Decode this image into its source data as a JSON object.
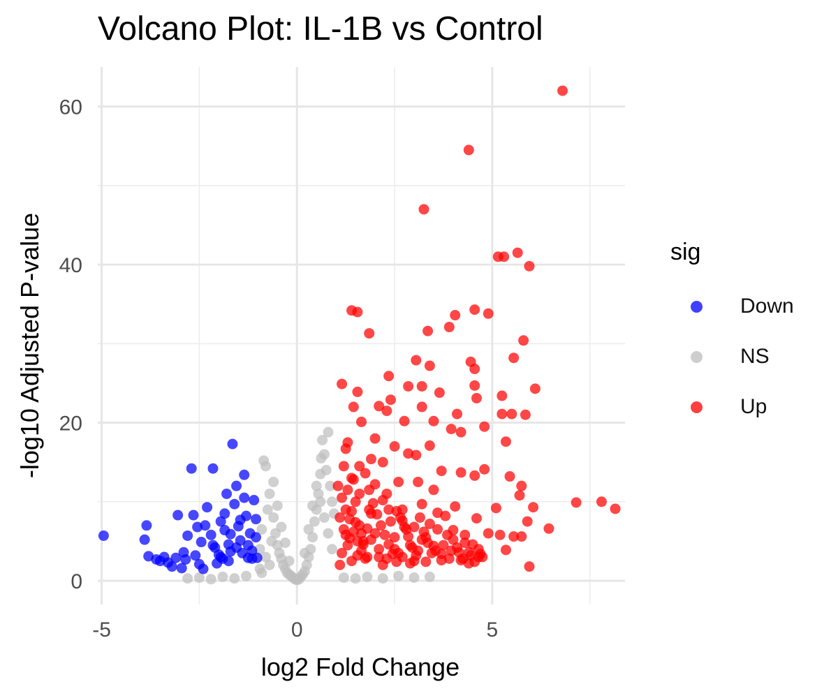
{
  "chart_data": {
    "type": "scatter",
    "title": "Volcano Plot: IL-1B vs Control",
    "xlabel": "log2 Fold Change",
    "ylabel": "-log10 Adjusted P-value",
    "xlim": [
      -5.1,
      8.4
    ],
    "ylim": [
      -3,
      65
    ],
    "x_ticks": [
      -5,
      0,
      5
    ],
    "y_ticks": [
      0,
      20,
      40,
      60
    ],
    "grid": true,
    "legend": {
      "title": "sig",
      "position": "right"
    },
    "series": [
      {
        "name": "Down",
        "color": "#0000FF",
        "points": [
          [
            -4.95,
            5.7
          ],
          [
            -3.85,
            7.0
          ],
          [
            -3.9,
            5.2
          ],
          [
            -3.8,
            3.1
          ],
          [
            -3.6,
            2.7
          ],
          [
            -3.5,
            2.5
          ],
          [
            -3.3,
            2.3
          ],
          [
            -3.2,
            1.8
          ],
          [
            -3.1,
            2.9
          ],
          [
            -2.95,
            1.6
          ],
          [
            -2.9,
            3.6
          ],
          [
            -2.8,
            5.7
          ],
          [
            -2.7,
            14.2
          ],
          [
            -2.65,
            8.3
          ],
          [
            -2.6,
            3.2
          ],
          [
            -2.5,
            2.1
          ],
          [
            -2.4,
            1.5
          ],
          [
            -2.3,
            9.3
          ],
          [
            -2.2,
            5.8
          ],
          [
            -2.15,
            14.2
          ],
          [
            -2.1,
            4.2
          ],
          [
            -2.0,
            3.3
          ],
          [
            -1.95,
            7.5
          ],
          [
            -1.9,
            2.8
          ],
          [
            -1.85,
            6.4
          ],
          [
            -1.8,
            11.0
          ],
          [
            -1.75,
            4.6
          ],
          [
            -1.7,
            3.7
          ],
          [
            -1.65,
            17.3
          ],
          [
            -1.6,
            9.7
          ],
          [
            -1.55,
            12.0
          ],
          [
            -1.5,
            6.9
          ],
          [
            -1.45,
            5.1
          ],
          [
            -1.4,
            3.5
          ],
          [
            -1.35,
            13.4
          ],
          [
            -1.3,
            8.2
          ],
          [
            -1.25,
            4.5
          ],
          [
            -1.2,
            6.0
          ],
          [
            -1.15,
            2.8
          ],
          [
            -1.1,
            10.2
          ],
          [
            -1.05,
            5.5
          ],
          [
            -1.02,
            2.9
          ],
          [
            -2.55,
            6.8
          ],
          [
            -2.45,
            4.9
          ],
          [
            -1.95,
            3.0
          ],
          [
            -1.7,
            5.9
          ],
          [
            -1.45,
            7.7
          ],
          [
            -1.25,
            2.9
          ],
          [
            -3.05,
            8.3
          ],
          [
            -2.85,
            2.7
          ],
          [
            -2.05,
            2.2
          ],
          [
            -1.55,
            4.2
          ],
          [
            -1.15,
            3.8
          ],
          [
            -3.4,
            3.0
          ],
          [
            -2.35,
            7.0
          ],
          [
            -1.85,
            8.5
          ],
          [
            -1.35,
            10.5
          ],
          [
            -1.05,
            7.8
          ],
          [
            -2.15,
            4.5
          ],
          [
            -1.75,
            2.5
          ]
        ]
      },
      {
        "name": "NS",
        "color": "#BEBEBE",
        "points": [
          [
            -0.85,
            15.2
          ],
          [
            -0.8,
            14.5
          ],
          [
            -0.7,
            11.0
          ],
          [
            -0.6,
            8.0
          ],
          [
            -0.55,
            6.0
          ],
          [
            -0.5,
            4.5
          ],
          [
            -0.45,
            3.5
          ],
          [
            -0.4,
            2.8
          ],
          [
            -0.35,
            2.0
          ],
          [
            -0.3,
            1.5
          ],
          [
            -0.25,
            1.0
          ],
          [
            -0.2,
            0.8
          ],
          [
            -0.15,
            0.6
          ],
          [
            -0.1,
            0.4
          ],
          [
            -0.05,
            0.2
          ],
          [
            0.0,
            0.1
          ],
          [
            0.05,
            0.2
          ],
          [
            0.1,
            0.5
          ],
          [
            0.15,
            0.8
          ],
          [
            0.2,
            1.2
          ],
          [
            0.25,
            2.0
          ],
          [
            0.3,
            3.0
          ],
          [
            0.35,
            4.0
          ],
          [
            0.4,
            5.5
          ],
          [
            0.45,
            7.5
          ],
          [
            0.5,
            9.0
          ],
          [
            0.55,
            11.0
          ],
          [
            0.6,
            13.5
          ],
          [
            0.62,
            15.5
          ],
          [
            0.65,
            17.8
          ],
          [
            0.7,
            16.0
          ],
          [
            0.75,
            14.0
          ],
          [
            0.8,
            18.8
          ],
          [
            0.85,
            12.0
          ],
          [
            0.9,
            10.0
          ],
          [
            0.95,
            8.5
          ],
          [
            -0.95,
            4.0
          ],
          [
            -0.9,
            6.5
          ],
          [
            -0.75,
            9.0
          ],
          [
            -0.65,
            5.0
          ],
          [
            -0.95,
            1.5
          ],
          [
            -0.9,
            1.0
          ],
          [
            -2.8,
            0.3
          ],
          [
            -2.5,
            0.4
          ],
          [
            -2.2,
            0.2
          ],
          [
            -1.9,
            0.5
          ],
          [
            -1.6,
            0.3
          ],
          [
            -1.3,
            0.6
          ],
          [
            1.2,
            0.4
          ],
          [
            1.5,
            0.3
          ],
          [
            1.8,
            0.5
          ],
          [
            2.2,
            0.3
          ],
          [
            2.6,
            0.6
          ],
          [
            3.0,
            0.4
          ],
          [
            3.4,
            0.5
          ],
          [
            0.5,
            12.0
          ],
          [
            0.6,
            10.0
          ],
          [
            0.7,
            8.0
          ],
          [
            0.4,
            9.5
          ],
          [
            0.3,
            6.5
          ],
          [
            -0.3,
            4.8
          ],
          [
            -0.4,
            6.8
          ],
          [
            -0.5,
            9.5
          ],
          [
            -0.6,
            12.5
          ],
          [
            0.2,
            3.5
          ],
          [
            -0.2,
            2.5
          ],
          [
            0.8,
            6.0
          ],
          [
            0.9,
            4.0
          ],
          [
            -0.8,
            3.0
          ],
          [
            -0.7,
            2.0
          ]
        ]
      },
      {
        "name": "Up",
        "color": "#FF0000",
        "points": [
          [
            6.8,
            62.0
          ],
          [
            4.4,
            54.5
          ],
          [
            3.25,
            47.0
          ],
          [
            5.15,
            41.0
          ],
          [
            5.3,
            41.0
          ],
          [
            5.65,
            41.5
          ],
          [
            5.95,
            39.8
          ],
          [
            1.4,
            34.2
          ],
          [
            1.55,
            34.0
          ],
          [
            4.55,
            34.3
          ],
          [
            4.9,
            33.8
          ],
          [
            1.85,
            31.3
          ],
          [
            3.35,
            31.6
          ],
          [
            4.05,
            33.6
          ],
          [
            3.9,
            32.1
          ],
          [
            5.8,
            30.4
          ],
          [
            3.05,
            27.9
          ],
          [
            3.4,
            27.2
          ],
          [
            4.45,
            27.7
          ],
          [
            4.55,
            26.8
          ],
          [
            5.55,
            28.2
          ],
          [
            2.35,
            25.9
          ],
          [
            1.15,
            24.9
          ],
          [
            1.55,
            23.9
          ],
          [
            2.85,
            24.6
          ],
          [
            3.2,
            24.6
          ],
          [
            3.65,
            23.8
          ],
          [
            4.55,
            24.7
          ],
          [
            6.1,
            24.3
          ],
          [
            5.25,
            23.4
          ],
          [
            4.6,
            23.1
          ],
          [
            2.4,
            22.9
          ],
          [
            2.1,
            22.1
          ],
          [
            3.2,
            22.0
          ],
          [
            1.45,
            22.0
          ],
          [
            5.25,
            21.1
          ],
          [
            5.5,
            21.1
          ],
          [
            5.85,
            21.0
          ],
          [
            4.1,
            21.1
          ],
          [
            2.3,
            21.5
          ],
          [
            2.75,
            20.2
          ],
          [
            1.65,
            20.1
          ],
          [
            3.5,
            20.2
          ],
          [
            4.8,
            19.5
          ],
          [
            3.95,
            19.2
          ],
          [
            4.2,
            18.8
          ],
          [
            2.0,
            18.0
          ],
          [
            1.3,
            17.5
          ],
          [
            2.5,
            17.0
          ],
          [
            3.4,
            17.1
          ],
          [
            5.35,
            17.6
          ],
          [
            1.25,
            16.7
          ],
          [
            2.85,
            16.1
          ],
          [
            3.05,
            15.9
          ],
          [
            1.9,
            15.4
          ],
          [
            2.2,
            15.0
          ],
          [
            1.6,
            14.5
          ],
          [
            3.7,
            13.9
          ],
          [
            4.2,
            13.7
          ],
          [
            4.8,
            14.1
          ],
          [
            5.45,
            13.2
          ],
          [
            5.75,
            12.0
          ],
          [
            1.4,
            13.0
          ],
          [
            2.6,
            12.5
          ],
          [
            3.1,
            12.5
          ],
          [
            3.5,
            11.5
          ],
          [
            4.55,
            13.3
          ],
          [
            5.7,
            10.8
          ],
          [
            7.15,
            9.9
          ],
          [
            7.8,
            10.0
          ],
          [
            8.15,
            9.1
          ],
          [
            6.05,
            9.3
          ],
          [
            5.1,
            9.2
          ],
          [
            3.2,
            9.7
          ],
          [
            3.6,
            8.6
          ],
          [
            4.05,
            9.4
          ],
          [
            4.6,
            7.9
          ],
          [
            4.9,
            6.0
          ],
          [
            5.2,
            5.8
          ],
          [
            5.55,
            5.6
          ],
          [
            5.75,
            5.6
          ],
          [
            5.9,
            7.5
          ],
          [
            6.45,
            6.6
          ],
          [
            5.35,
            3.9
          ],
          [
            5.95,
            1.8
          ],
          [
            1.1,
            8.0
          ],
          [
            1.2,
            6.5
          ],
          [
            1.3,
            4.5
          ],
          [
            1.4,
            2.5
          ],
          [
            1.5,
            10.0
          ],
          [
            1.6,
            7.0
          ],
          [
            1.7,
            5.0
          ],
          [
            1.8,
            3.0
          ],
          [
            1.9,
            8.5
          ],
          [
            2.0,
            6.0
          ],
          [
            2.1,
            4.0
          ],
          [
            2.2,
            2.0
          ],
          [
            2.3,
            11.0
          ],
          [
            2.4,
            7.5
          ],
          [
            2.5,
            5.5
          ],
          [
            2.6,
            3.5
          ],
          [
            2.7,
            9.0
          ],
          [
            2.8,
            6.5
          ],
          [
            2.9,
            4.5
          ],
          [
            3.0,
            2.5
          ],
          [
            3.15,
            8.0
          ],
          [
            3.3,
            5.5
          ],
          [
            3.45,
            3.5
          ],
          [
            3.6,
            6.5
          ],
          [
            3.75,
            4.5
          ],
          [
            3.9,
            2.8
          ],
          [
            4.0,
            5.2
          ],
          [
            4.15,
            3.6
          ],
          [
            4.3,
            4.8
          ],
          [
            4.45,
            3.2
          ],
          [
            4.65,
            4.0
          ],
          [
            4.75,
            3.0
          ],
          [
            1.05,
            12.0
          ],
          [
            1.15,
            10.5
          ],
          [
            1.25,
            9.0
          ],
          [
            1.35,
            7.8
          ],
          [
            1.45,
            6.2
          ],
          [
            1.55,
            5.0
          ],
          [
            1.65,
            3.8
          ],
          [
            1.75,
            2.8
          ],
          [
            1.85,
            11.5
          ],
          [
            1.95,
            9.8
          ],
          [
            2.05,
            8.4
          ],
          [
            2.15,
            7.0
          ],
          [
            2.25,
            5.8
          ],
          [
            2.35,
            4.6
          ],
          [
            2.45,
            3.4
          ],
          [
            2.55,
            2.4
          ],
          [
            2.65,
            8.0
          ],
          [
            2.75,
            6.8
          ],
          [
            2.85,
            5.6
          ],
          [
            2.95,
            4.2
          ],
          [
            3.05,
            3.2
          ],
          [
            3.25,
            6.2
          ],
          [
            3.35,
            4.8
          ],
          [
            3.55,
            3.8
          ],
          [
            3.7,
            2.6
          ],
          [
            3.85,
            5.8
          ],
          [
            4.1,
            4.2
          ],
          [
            4.25,
            2.8
          ],
          [
            4.4,
            3.6
          ],
          [
            4.55,
            2.4
          ],
          [
            4.7,
            3.4
          ],
          [
            1.1,
            2.0
          ],
          [
            1.2,
            14.5
          ],
          [
            1.3,
            11.5
          ],
          [
            1.45,
            12.8
          ],
          [
            1.6,
            11.0
          ],
          [
            1.75,
            13.6
          ],
          [
            1.85,
            9.0
          ],
          [
            2.0,
            12.2
          ],
          [
            2.2,
            10.2
          ],
          [
            2.35,
            9.0
          ],
          [
            2.55,
            8.8
          ],
          [
            2.7,
            7.6
          ],
          [
            3.0,
            6.8
          ],
          [
            3.2,
            5.2
          ],
          [
            3.4,
            7.2
          ],
          [
            3.8,
            8.2
          ],
          [
            4.0,
            6.4
          ],
          [
            4.3,
            5.8
          ],
          [
            4.5,
            4.6
          ],
          [
            4.65,
            3.0
          ],
          [
            1.35,
            5.4
          ],
          [
            1.55,
            3.2
          ],
          [
            1.7,
            4.6
          ],
          [
            1.9,
            5.2
          ],
          [
            2.1,
            3.0
          ],
          [
            2.3,
            2.8
          ],
          [
            2.5,
            4.0
          ],
          [
            2.7,
            3.0
          ],
          [
            2.9,
            2.2
          ],
          [
            3.1,
            3.8
          ],
          [
            3.3,
            2.4
          ],
          [
            3.5,
            4.4
          ],
          [
            3.7,
            3.4
          ],
          [
            3.95,
            3.8
          ],
          [
            4.2,
            2.6
          ],
          [
            4.4,
            2.2
          ],
          [
            1.15,
            3.5
          ],
          [
            1.25,
            5.8
          ],
          [
            1.4,
            8.8
          ],
          [
            1.5,
            7.4
          ],
          [
            1.65,
            6.0
          ],
          [
            1.8,
            6.6
          ]
        ]
      }
    ]
  }
}
